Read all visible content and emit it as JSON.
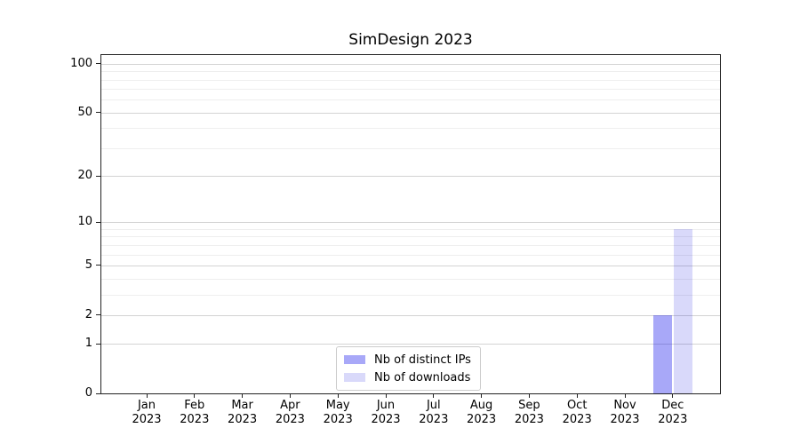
{
  "chart_data": {
    "type": "bar",
    "title": "SimDesign 2023",
    "categories": [
      "Jan 2023",
      "Feb 2023",
      "Mar 2023",
      "Apr 2023",
      "May 2023",
      "Jun 2023",
      "Jul 2023",
      "Aug 2023",
      "Sep 2023",
      "Oct 2023",
      "Nov 2023",
      "Dec 2023"
    ],
    "series": [
      {
        "name": "Nb of distinct IPs",
        "color": "rgba(0,0,234,0.34)",
        "color_hex_on_white": "#a8a8f7",
        "values": [
          0,
          0,
          0,
          0,
          0,
          0,
          0,
          0,
          0,
          0,
          0,
          2
        ]
      },
      {
        "name": "Nb of downloads",
        "color": "rgba(0,0,221,0.15)",
        "color_hex_on_white": "#d8d8fa",
        "values": [
          0,
          0,
          0,
          0,
          0,
          0,
          0,
          0,
          0,
          0,
          0,
          9
        ]
      }
    ],
    "xlabel": "",
    "ylabel": "",
    "y_scale": "log1p",
    "ylim": [
      0,
      112
    ],
    "y_major_ticks": [
      0,
      1,
      2,
      5,
      10,
      20,
      50,
      100
    ],
    "y_minor_gridlines": [
      3,
      4,
      6,
      7,
      8,
      9,
      30,
      40,
      60,
      70,
      80,
      90
    ],
    "grid": "horizontal",
    "legend_position": "lower center",
    "colors": {
      "major_grid": "#d3d3d3",
      "minor_grid": "#eeeeee",
      "spine": "#222222",
      "text": "#000000",
      "background": "#ffffff"
    }
  }
}
